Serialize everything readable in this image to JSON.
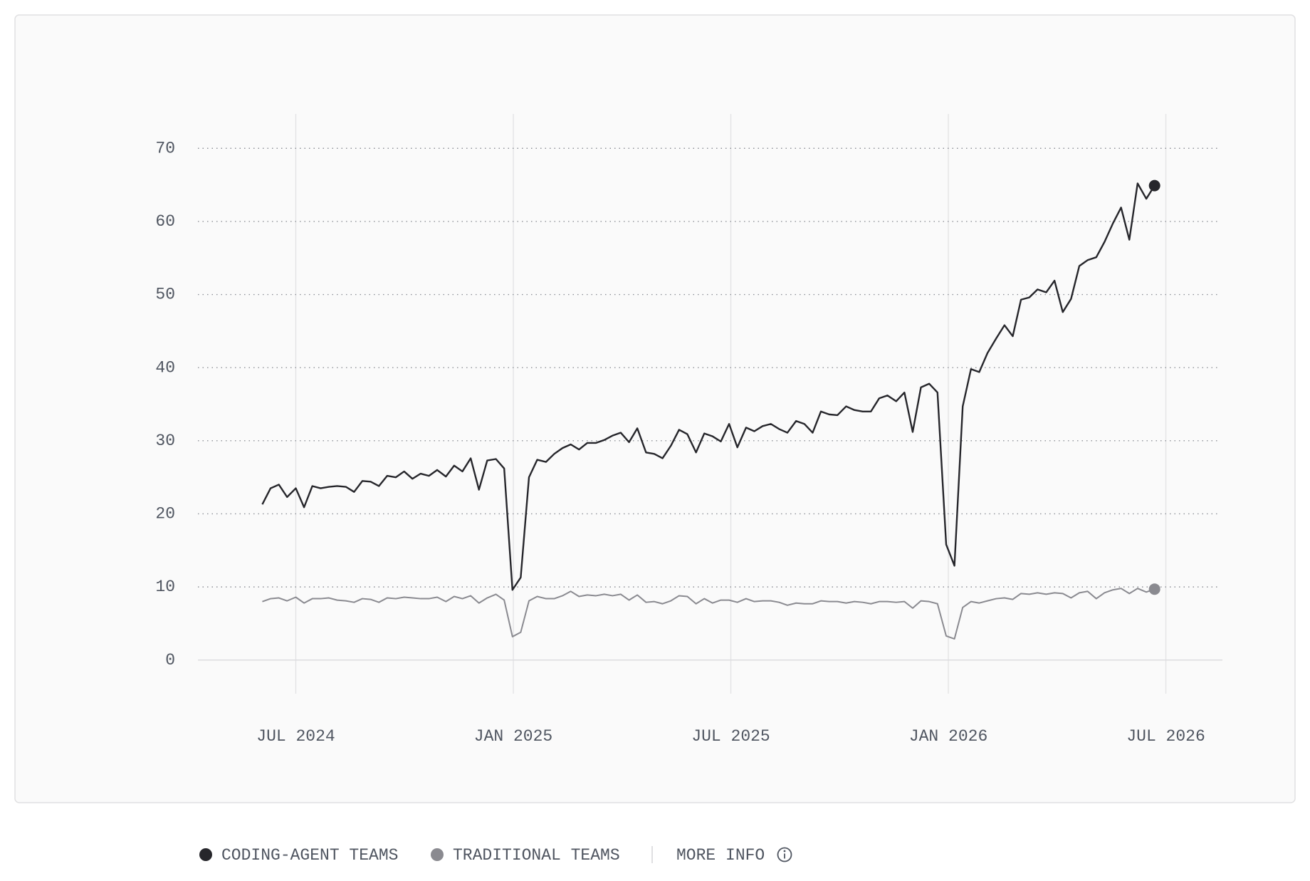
{
  "chart_data": {
    "type": "line",
    "x": [
      2024.423,
      2024.442,
      2024.461,
      2024.48,
      2024.5,
      2024.519,
      2024.538,
      2024.557,
      2024.576,
      2024.595,
      2024.615,
      2024.634,
      2024.653,
      2024.672,
      2024.691,
      2024.71,
      2024.73,
      2024.749,
      2024.768,
      2024.787,
      2024.806,
      2024.825,
      2024.845,
      2024.864,
      2024.883,
      2024.902,
      2024.921,
      2024.94,
      2024.96,
      2024.979,
      2024.998,
      2025.017,
      2025.036,
      2025.055,
      2025.075,
      2025.094,
      2025.113,
      2025.132,
      2025.151,
      2025.17,
      2025.19,
      2025.209,
      2025.228,
      2025.247,
      2025.266,
      2025.285,
      2025.305,
      2025.324,
      2025.343,
      2025.362,
      2025.381,
      2025.4,
      2025.42,
      2025.439,
      2025.458,
      2025.477,
      2025.496,
      2025.515,
      2025.535,
      2025.554,
      2025.573,
      2025.592,
      2025.611,
      2025.63,
      2025.65,
      2025.669,
      2025.688,
      2025.707,
      2025.726,
      2025.745,
      2025.765,
      2025.784,
      2025.803,
      2025.822,
      2025.841,
      2025.86,
      2025.88,
      2025.899,
      2025.918,
      2025.937,
      2025.956,
      2025.975,
      2025.995,
      2026.014,
      2026.033,
      2026.052,
      2026.071,
      2026.09,
      2026.11,
      2026.129,
      2026.148,
      2026.167,
      2026.186,
      2026.205,
      2026.225,
      2026.244,
      2026.263,
      2026.282,
      2026.301,
      2026.32,
      2026.34,
      2026.359,
      2026.378,
      2026.397,
      2026.416,
      2026.435,
      2026.455,
      2026.474
    ],
    "series": [
      {
        "name": "CODING-AGENT TEAMS",
        "color": "#26262b",
        "values": [
          21.3,
          23.5,
          24.0,
          22.3,
          23.5,
          20.9,
          23.8,
          23.5,
          23.7,
          23.8,
          23.7,
          23.0,
          24.5,
          24.4,
          23.8,
          25.2,
          25.0,
          25.8,
          24.8,
          25.5,
          25.2,
          26.0,
          25.1,
          26.6,
          25.8,
          27.6,
          23.3,
          27.3,
          27.5,
          26.2,
          9.6,
          11.3,
          25.0,
          27.4,
          27.1,
          28.2,
          29.0,
          29.5,
          28.8,
          29.7,
          29.7,
          30.1,
          30.7,
          31.1,
          29.8,
          31.7,
          28.4,
          28.2,
          27.6,
          29.3,
          31.5,
          30.9,
          28.4,
          31.0,
          30.6,
          29.9,
          32.3,
          29.1,
          31.8,
          31.3,
          32.0,
          32.3,
          31.6,
          31.1,
          32.7,
          32.3,
          31.1,
          34.0,
          33.6,
          33.5,
          34.7,
          34.2,
          34.0,
          34.0,
          35.8,
          36.2,
          35.4,
          36.6,
          31.2,
          37.3,
          37.8,
          36.6,
          15.8,
          12.9,
          34.7,
          39.8,
          39.4,
          42.0,
          44.0,
          45.8,
          44.3,
          49.3,
          49.6,
          50.7,
          50.3,
          51.9,
          47.6,
          49.4,
          53.9,
          54.7,
          55.1,
          57.2,
          59.7,
          61.9,
          57.5,
          65.2,
          63.1,
          64.9
        ]
      },
      {
        "name": "TRADITIONAL TEAMS",
        "color": "#8a8a90",
        "values": [
          8.0,
          8.4,
          8.5,
          8.1,
          8.6,
          7.8,
          8.4,
          8.4,
          8.5,
          8.2,
          8.1,
          7.9,
          8.4,
          8.3,
          7.9,
          8.5,
          8.4,
          8.6,
          8.5,
          8.4,
          8.4,
          8.6,
          8.0,
          8.7,
          8.4,
          8.8,
          7.8,
          8.5,
          9.0,
          8.2,
          3.2,
          3.8,
          8.1,
          8.7,
          8.4,
          8.4,
          8.8,
          9.4,
          8.7,
          8.9,
          8.8,
          9.0,
          8.8,
          9.0,
          8.2,
          8.9,
          7.9,
          8.0,
          7.7,
          8.1,
          8.8,
          8.7,
          7.7,
          8.4,
          7.8,
          8.2,
          8.2,
          7.9,
          8.4,
          8.0,
          8.1,
          8.1,
          7.9,
          7.5,
          7.8,
          7.7,
          7.7,
          8.1,
          8.0,
          8.0,
          7.8,
          8.0,
          7.9,
          7.7,
          8.0,
          8.0,
          7.9,
          8.0,
          7.1,
          8.1,
          8.0,
          7.7,
          3.3,
          2.9,
          7.2,
          8.0,
          7.8,
          8.1,
          8.4,
          8.5,
          8.3,
          9.1,
          9.0,
          9.2,
          9.0,
          9.2,
          9.1,
          8.5,
          9.2,
          9.4,
          8.4,
          9.2,
          9.6,
          9.8,
          9.1,
          9.8,
          9.3,
          9.7
        ]
      }
    ],
    "xlim": [
      2024.275,
      2026.63
    ],
    "xticks": [
      {
        "value": 2024.5,
        "label": "JUL 2024"
      },
      {
        "value": 2025.0,
        "label": "JAN 2025"
      },
      {
        "value": 2025.5,
        "label": "JUL 2025"
      },
      {
        "value": 2026.0,
        "label": "JAN 2026"
      },
      {
        "value": 2026.5,
        "label": "JUL 2026"
      }
    ],
    "ylim": [
      -4.6,
      74.7
    ],
    "yticks": [
      0,
      10,
      20,
      30,
      40,
      50,
      60,
      70
    ],
    "grid": true,
    "legend": "bottom",
    "more_info": "MORE INFO"
  }
}
